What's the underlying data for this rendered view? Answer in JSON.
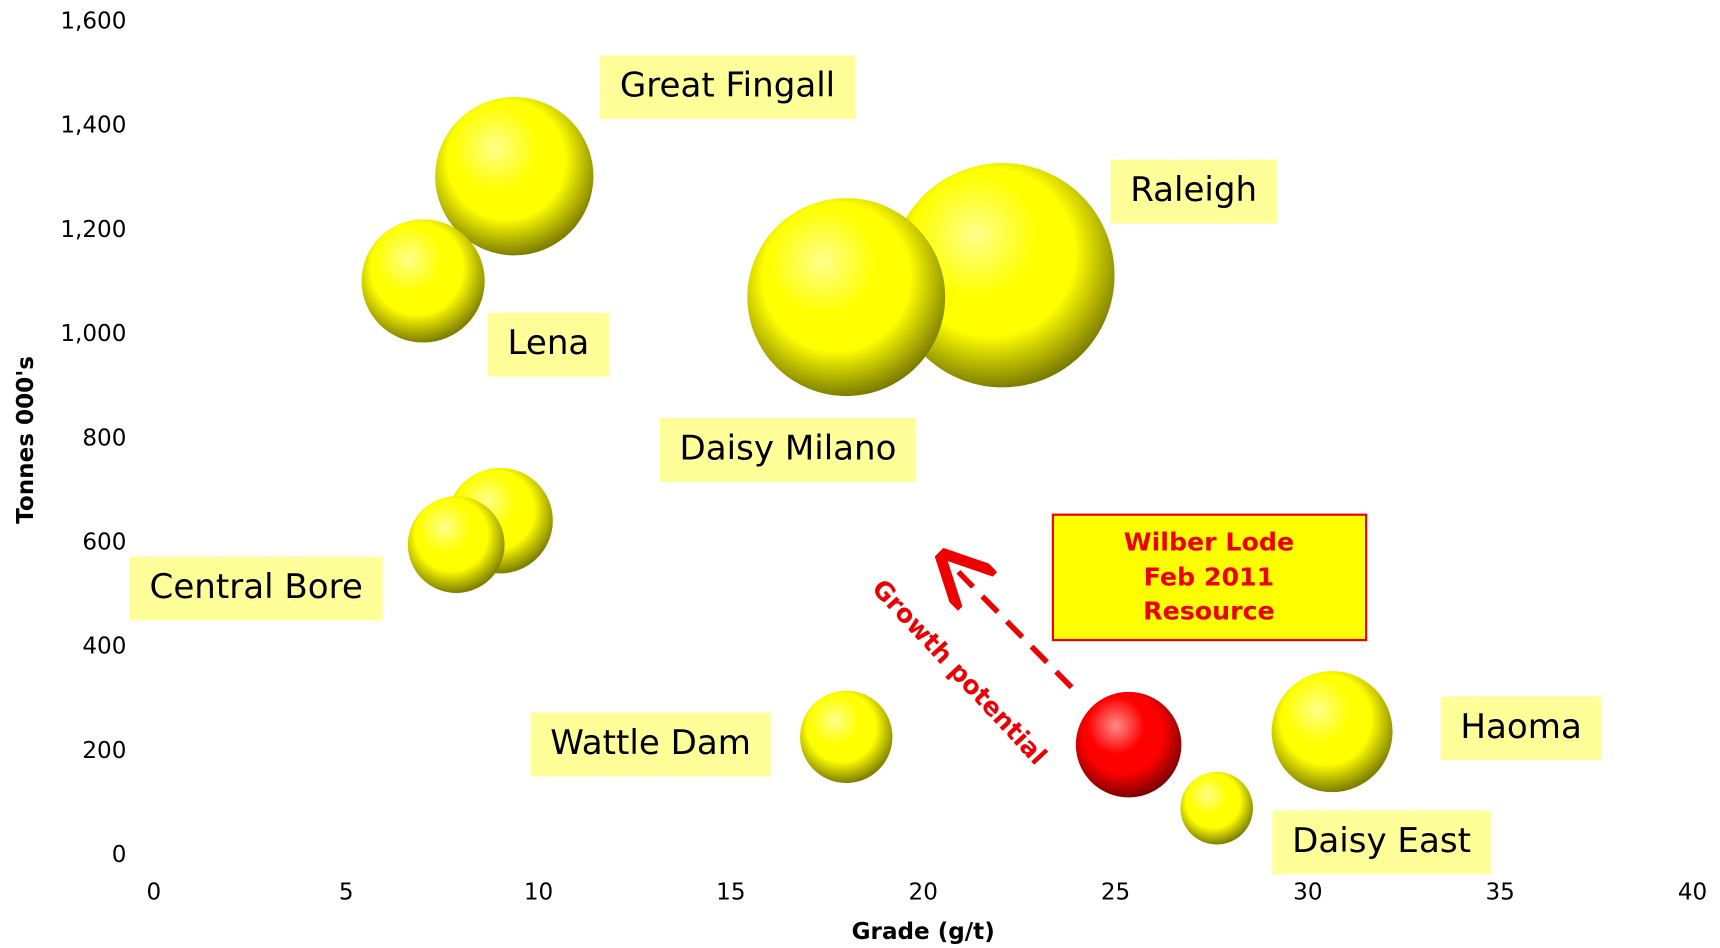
{
  "chart_data": {
    "type": "bubble",
    "x_label": "Grade (g/t)",
    "y_label": "Tonnes 000's",
    "names": [
      "Great Fingall",
      "Lena",
      "Raleigh",
      "Daisy Milano",
      null,
      "Central Bore",
      "Wattle Dam",
      null,
      "Haoma",
      "Daisy East"
    ],
    "x": [
      9.37,
      7.0,
      22.06,
      18.0,
      9.0,
      7.86,
      18.0,
      25.34,
      30.63,
      27.63
    ],
    "values": [
      1304,
      1103,
      1114,
      1072,
      643,
      597,
      228,
      213,
      238,
      91
    ],
    "sizes": [
      72,
      56,
      102,
      90,
      48,
      44,
      42,
      48,
      55,
      33
    ],
    "colors": [
      "#ffff00",
      "#ffff00",
      "#ffff00",
      "#ffff00",
      "#ffff00",
      "#ffff00",
      "#ffff00",
      "#ff0000",
      "#ffff00",
      "#ffff00"
    ],
    "label_background": "#ffff99",
    "xlim": [
      0,
      40
    ],
    "ylim": [
      0,
      1600
    ],
    "xticks": [
      0,
      5,
      10,
      15,
      20,
      25,
      30,
      35,
      40
    ],
    "yticks": [
      0,
      200,
      400,
      600,
      800,
      {
        "value": 1000,
        "label": "1,000"
      },
      {
        "value": 1200,
        "label": "1,200"
      },
      {
        "value": 1400,
        "label": "1,400"
      },
      {
        "value": 1600,
        "label": "1,600"
      }
    ],
    "annotations": {
      "resource_box": [
        "Wilber Lode",
        "Feb 2011",
        "Resource"
      ],
      "arrow_text": "Growth potential"
    }
  }
}
